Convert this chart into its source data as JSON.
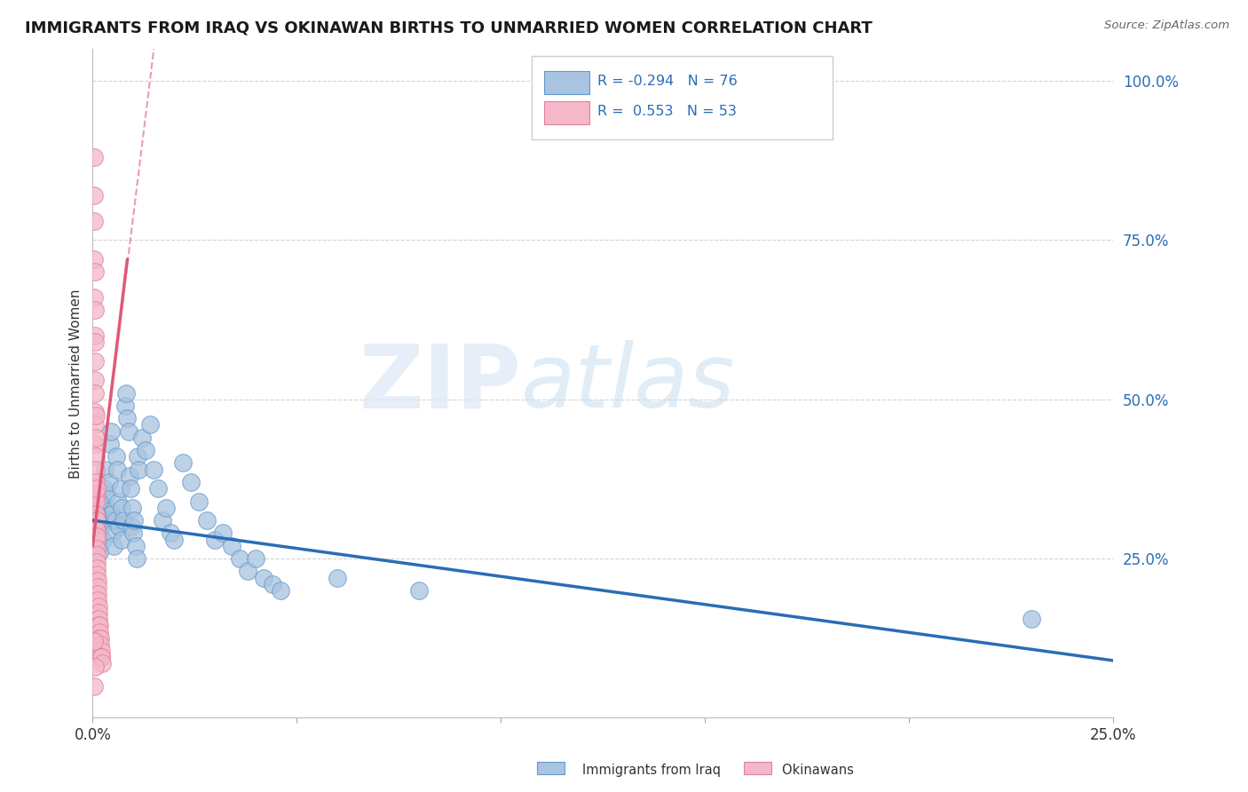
{
  "title": "IMMIGRANTS FROM IRAQ VS OKINAWAN BIRTHS TO UNMARRIED WOMEN CORRELATION CHART",
  "source": "Source: ZipAtlas.com",
  "ylabel_label": "Births to Unmarried Women",
  "legend_label1": "Immigrants from Iraq",
  "legend_label2": "Okinawans",
  "blue_color": "#a8c4e0",
  "blue_edge_color": "#6699cc",
  "pink_color": "#f4b8c8",
  "pink_edge_color": "#e080a0",
  "trend_blue_color": "#2a6db5",
  "trend_pink_color": "#e05878",
  "watermark_zip": "ZIP",
  "watermark_atlas": "atlas",
  "blue_dots": [
    [
      0.0008,
      0.33
    ],
    [
      0.001,
      0.35
    ],
    [
      0.0012,
      0.31
    ],
    [
      0.0015,
      0.29
    ],
    [
      0.0018,
      0.34
    ],
    [
      0.002,
      0.32
    ],
    [
      0.0022,
      0.3
    ],
    [
      0.0025,
      0.28
    ],
    [
      0.0028,
      0.36
    ],
    [
      0.003,
      0.39
    ],
    [
      0.0032,
      0.33
    ],
    [
      0.0035,
      0.35
    ],
    [
      0.0038,
      0.31
    ],
    [
      0.004,
      0.37
    ],
    [
      0.0042,
      0.43
    ],
    [
      0.0045,
      0.45
    ],
    [
      0.0048,
      0.32
    ],
    [
      0.005,
      0.29
    ],
    [
      0.0052,
      0.27
    ],
    [
      0.0055,
      0.31
    ],
    [
      0.0058,
      0.41
    ],
    [
      0.006,
      0.39
    ],
    [
      0.0062,
      0.34
    ],
    [
      0.0065,
      0.3
    ],
    [
      0.0068,
      0.36
    ],
    [
      0.007,
      0.33
    ],
    [
      0.0072,
      0.28
    ],
    [
      0.0075,
      0.31
    ],
    [
      0.008,
      0.49
    ],
    [
      0.0082,
      0.51
    ],
    [
      0.0085,
      0.47
    ],
    [
      0.0088,
      0.45
    ],
    [
      0.009,
      0.38
    ],
    [
      0.0092,
      0.36
    ],
    [
      0.0095,
      0.3
    ],
    [
      0.0098,
      0.33
    ],
    [
      0.01,
      0.29
    ],
    [
      0.0102,
      0.31
    ],
    [
      0.0105,
      0.27
    ],
    [
      0.0108,
      0.25
    ],
    [
      0.011,
      0.41
    ],
    [
      0.0112,
      0.39
    ],
    [
      0.012,
      0.44
    ],
    [
      0.013,
      0.42
    ],
    [
      0.014,
      0.46
    ],
    [
      0.015,
      0.39
    ],
    [
      0.016,
      0.36
    ],
    [
      0.017,
      0.31
    ],
    [
      0.018,
      0.33
    ],
    [
      0.019,
      0.29
    ],
    [
      0.02,
      0.28
    ],
    [
      0.022,
      0.4
    ],
    [
      0.024,
      0.37
    ],
    [
      0.026,
      0.34
    ],
    [
      0.028,
      0.31
    ],
    [
      0.03,
      0.28
    ],
    [
      0.032,
      0.29
    ],
    [
      0.034,
      0.27
    ],
    [
      0.036,
      0.25
    ],
    [
      0.038,
      0.23
    ],
    [
      0.04,
      0.25
    ],
    [
      0.042,
      0.22
    ],
    [
      0.044,
      0.21
    ],
    [
      0.046,
      0.2
    ],
    [
      0.0005,
      0.3
    ],
    [
      0.0006,
      0.28
    ],
    [
      0.0007,
      0.27
    ],
    [
      0.0009,
      0.32
    ],
    [
      0.0011,
      0.29
    ],
    [
      0.0013,
      0.31
    ],
    [
      0.0014,
      0.34
    ],
    [
      0.0016,
      0.26
    ],
    [
      0.06,
      0.22
    ],
    [
      0.08,
      0.2
    ],
    [
      0.23,
      0.155
    ]
  ],
  "pink_dots": [
    [
      0.0003,
      0.88
    ],
    [
      0.0004,
      0.72
    ],
    [
      0.0004,
      0.66
    ],
    [
      0.0005,
      0.6
    ],
    [
      0.0005,
      0.56
    ],
    [
      0.0005,
      0.53
    ],
    [
      0.0006,
      0.48
    ],
    [
      0.0006,
      0.46
    ],
    [
      0.0006,
      0.43
    ],
    [
      0.0007,
      0.41
    ],
    [
      0.0007,
      0.39
    ],
    [
      0.0007,
      0.37
    ],
    [
      0.0008,
      0.35
    ],
    [
      0.0008,
      0.34
    ],
    [
      0.0008,
      0.32
    ],
    [
      0.0009,
      0.31
    ],
    [
      0.0009,
      0.295
    ],
    [
      0.0009,
      0.28
    ],
    [
      0.001,
      0.285
    ],
    [
      0.001,
      0.265
    ],
    [
      0.001,
      0.255
    ],
    [
      0.0011,
      0.245
    ],
    [
      0.0011,
      0.235
    ],
    [
      0.0011,
      0.225
    ],
    [
      0.0012,
      0.215
    ],
    [
      0.0012,
      0.205
    ],
    [
      0.0013,
      0.195
    ],
    [
      0.0013,
      0.185
    ],
    [
      0.0014,
      0.175
    ],
    [
      0.0014,
      0.165
    ],
    [
      0.0015,
      0.155
    ],
    [
      0.0015,
      0.145
    ],
    [
      0.0016,
      0.145
    ],
    [
      0.0017,
      0.135
    ],
    [
      0.0017,
      0.125
    ],
    [
      0.0018,
      0.125
    ],
    [
      0.0019,
      0.115
    ],
    [
      0.002,
      0.105
    ],
    [
      0.0021,
      0.095
    ],
    [
      0.0022,
      0.095
    ],
    [
      0.0023,
      0.085
    ],
    [
      0.0003,
      0.82
    ],
    [
      0.0004,
      0.78
    ],
    [
      0.0005,
      0.7
    ],
    [
      0.0006,
      0.64
    ],
    [
      0.0006,
      0.59
    ],
    [
      0.0005,
      0.51
    ],
    [
      0.0007,
      0.475
    ],
    [
      0.0008,
      0.44
    ],
    [
      0.0009,
      0.36
    ],
    [
      0.0003,
      0.05
    ],
    [
      0.0005,
      0.08
    ],
    [
      0.0003,
      0.12
    ]
  ],
  "blue_trend": [
    0.0,
    0.31,
    0.25,
    0.09
  ],
  "pink_trend_solid": [
    0.0,
    0.27,
    0.0085,
    0.72
  ],
  "pink_trend_dashed": [
    0.0,
    0.27,
    0.015,
    1.05
  ],
  "xmin": 0.0,
  "xmax": 0.25,
  "ymin": 0.0,
  "ymax": 1.05,
  "x_ticks": [
    0.0,
    0.25
  ],
  "x_tick_labels": [
    "0.0%",
    "25.0%"
  ],
  "y_ticks": [
    0.25,
    0.5,
    0.75,
    1.0
  ],
  "y_tick_labels": [
    "25.0%",
    "50.0%",
    "75.0%",
    "100.0%"
  ]
}
